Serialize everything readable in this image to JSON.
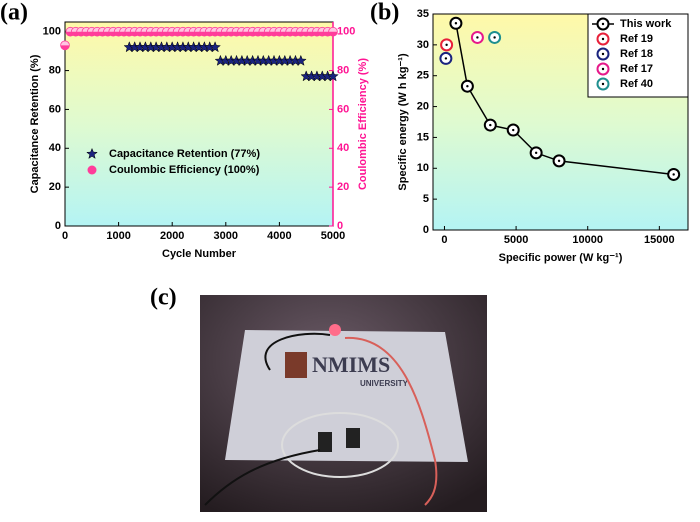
{
  "chart_data": [
    {
      "type": "scatter",
      "panel_label": "(a)",
      "xlabel": "Cycle Number",
      "ylabel": "Capacitance Retention (%)",
      "y2label": "Coulombic Efficiency (%)",
      "xlim": [
        0,
        5000
      ],
      "xticks": [
        0,
        1000,
        2000,
        3000,
        4000,
        5000
      ],
      "ylim": [
        0,
        105
      ],
      "yticks": [
        0,
        20,
        40,
        60,
        80,
        100
      ],
      "y2lim": [
        0,
        105
      ],
      "y2ticks": [
        0,
        20,
        40,
        60,
        80,
        100
      ],
      "y2color": "#ff1493",
      "legend": "lower left",
      "series": [
        {
          "name": "Capacitance Retention (77%)",
          "color": "#1a237e",
          "marker": "star",
          "x": [
            1200,
            1300,
            1400,
            1500,
            1600,
            1700,
            1800,
            1900,
            2000,
            2100,
            2200,
            2300,
            2400,
            2500,
            2600,
            2700,
            2800,
            2900,
            3000,
            3100,
            3200,
            3300,
            3400,
            3500,
            3600,
            3700,
            3800,
            3900,
            4000,
            4100,
            4200,
            4300,
            4400,
            4500,
            4600,
            4700,
            4800,
            4900,
            5000
          ],
          "values": [
            92,
            92,
            92,
            92,
            92,
            92,
            92,
            92,
            92,
            92,
            92,
            92,
            92,
            92,
            92,
            92,
            92,
            85,
            85,
            85,
            85,
            85,
            85,
            85,
            85,
            85,
            85,
            85,
            85,
            85,
            85,
            85,
            85,
            77,
            77,
            77,
            77,
            77,
            77
          ]
        },
        {
          "name": "Coulombic Efficiency (100%)",
          "color": "#ff3d9a",
          "marker": "half",
          "axis": "y2",
          "x": [
            0,
            100,
            200,
            300,
            400,
            500,
            600,
            700,
            800,
            900,
            1000,
            1100,
            1200,
            1300,
            1400,
            1500,
            1600,
            1700,
            1800,
            1900,
            2000,
            2100,
            2200,
            2300,
            2400,
            2500,
            2600,
            2700,
            2800,
            2900,
            3000,
            3100,
            3200,
            3300,
            3400,
            3500,
            3600,
            3700,
            3800,
            3900,
            4000,
            4100,
            4200,
            4300,
            4400,
            4500,
            4600,
            4700,
            4800,
            4900,
            5000
          ],
          "values": [
            93,
            100,
            100,
            100,
            100,
            100,
            100,
            100,
            100,
            100,
            100,
            100,
            100,
            100,
            100,
            100,
            100,
            100,
            100,
            100,
            100,
            100,
            100,
            100,
            100,
            100,
            100,
            100,
            100,
            100,
            100,
            100,
            100,
            100,
            100,
            100,
            100,
            100,
            100,
            100,
            100,
            100,
            100,
            100,
            100,
            100,
            100,
            100,
            100,
            100,
            100
          ]
        }
      ]
    },
    {
      "type": "scatter",
      "panel_label": "(b)",
      "xlabel": "Specific power (W kg⁻¹)",
      "ylabel": "Specific energy (W h kg⁻¹)",
      "xlim": [
        -800,
        17000
      ],
      "xticks": [
        0,
        5000,
        10000,
        15000
      ],
      "ylim": [
        0,
        35
      ],
      "yticks": [
        0,
        5,
        10,
        15,
        20,
        25,
        30,
        35
      ],
      "legend": "upper right",
      "series": [
        {
          "name": "This work",
          "color": "#000000",
          "marker": "circle",
          "connected": true,
          "x": [
            800,
            1600,
            3200,
            4800,
            6400,
            8000,
            16000
          ],
          "values": [
            33.5,
            23.3,
            17,
            16.2,
            12.5,
            11.2,
            9
          ]
        },
        {
          "name": "Ref 19",
          "color": "#e8203a",
          "marker": "circle",
          "x": [
            150
          ],
          "values": [
            30
          ]
        },
        {
          "name": "Ref 18",
          "color": "#1a237e",
          "marker": "circle",
          "x": [
            100
          ],
          "values": [
            27.8
          ]
        },
        {
          "name": "Ref 17",
          "color": "#e6198a",
          "marker": "circle",
          "x": [
            2300
          ],
          "values": [
            31.2
          ]
        },
        {
          "name": "Ref 40",
          "color": "#1f8f8f",
          "marker": "circle",
          "x": [
            3500
          ],
          "values": [
            31.2
          ]
        }
      ]
    }
  ],
  "photo": {
    "panel_label": "(c)",
    "logo": "NMIMS",
    "subtitle": "UNIVERSITY"
  }
}
